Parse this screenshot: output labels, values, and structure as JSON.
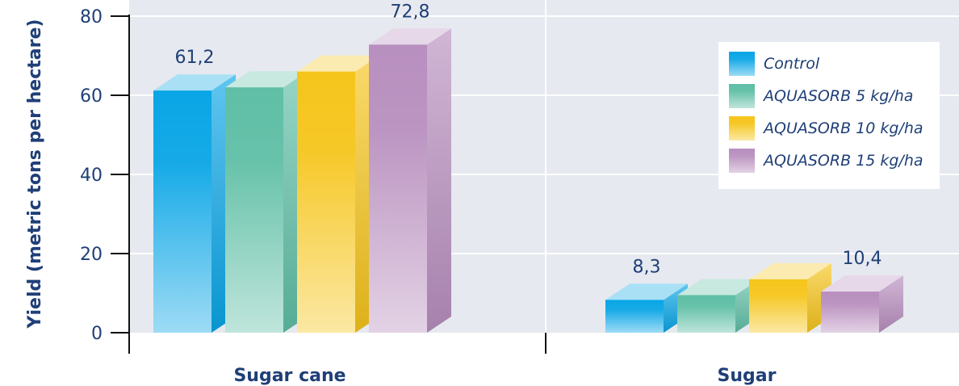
{
  "chart_data": {
    "type": "bar",
    "title": "",
    "ylabel": "Yield (metric tons per hectare)",
    "xlabel": "",
    "ylim": [
      0,
      80
    ],
    "yticks": [
      "0",
      "20",
      "40",
      "60",
      "80"
    ],
    "categories": [
      "Sugar cane",
      "Sugar"
    ],
    "series": [
      {
        "name": "Control",
        "values": [
          61.2,
          8.3
        ],
        "color": "#0aa6e6"
      },
      {
        "name": "AQUASORB 5 kg/ha",
        "values": [
          62,
          9.5
        ],
        "color": "#5fbfa6"
      },
      {
        "name": "AQUASORB 10 kg/ha",
        "values": [
          66,
          13.5
        ],
        "color": "#f5c51c"
      },
      {
        "name": "AQUASORB 15 kg/ha",
        "values": [
          72.8,
          10.4
        ],
        "color": "#b88fbf"
      }
    ],
    "data_labels": [
      {
        "category": 0,
        "series": 0,
        "text": "61,2"
      },
      {
        "category": 0,
        "series": 3,
        "text": "72,8"
      },
      {
        "category": 1,
        "series": 0,
        "text": "8,3"
      },
      {
        "category": 1,
        "series": 3,
        "text": "10,4"
      }
    ],
    "grid": true,
    "legend_position": "top-right",
    "background_color": "#e6e9ef"
  }
}
